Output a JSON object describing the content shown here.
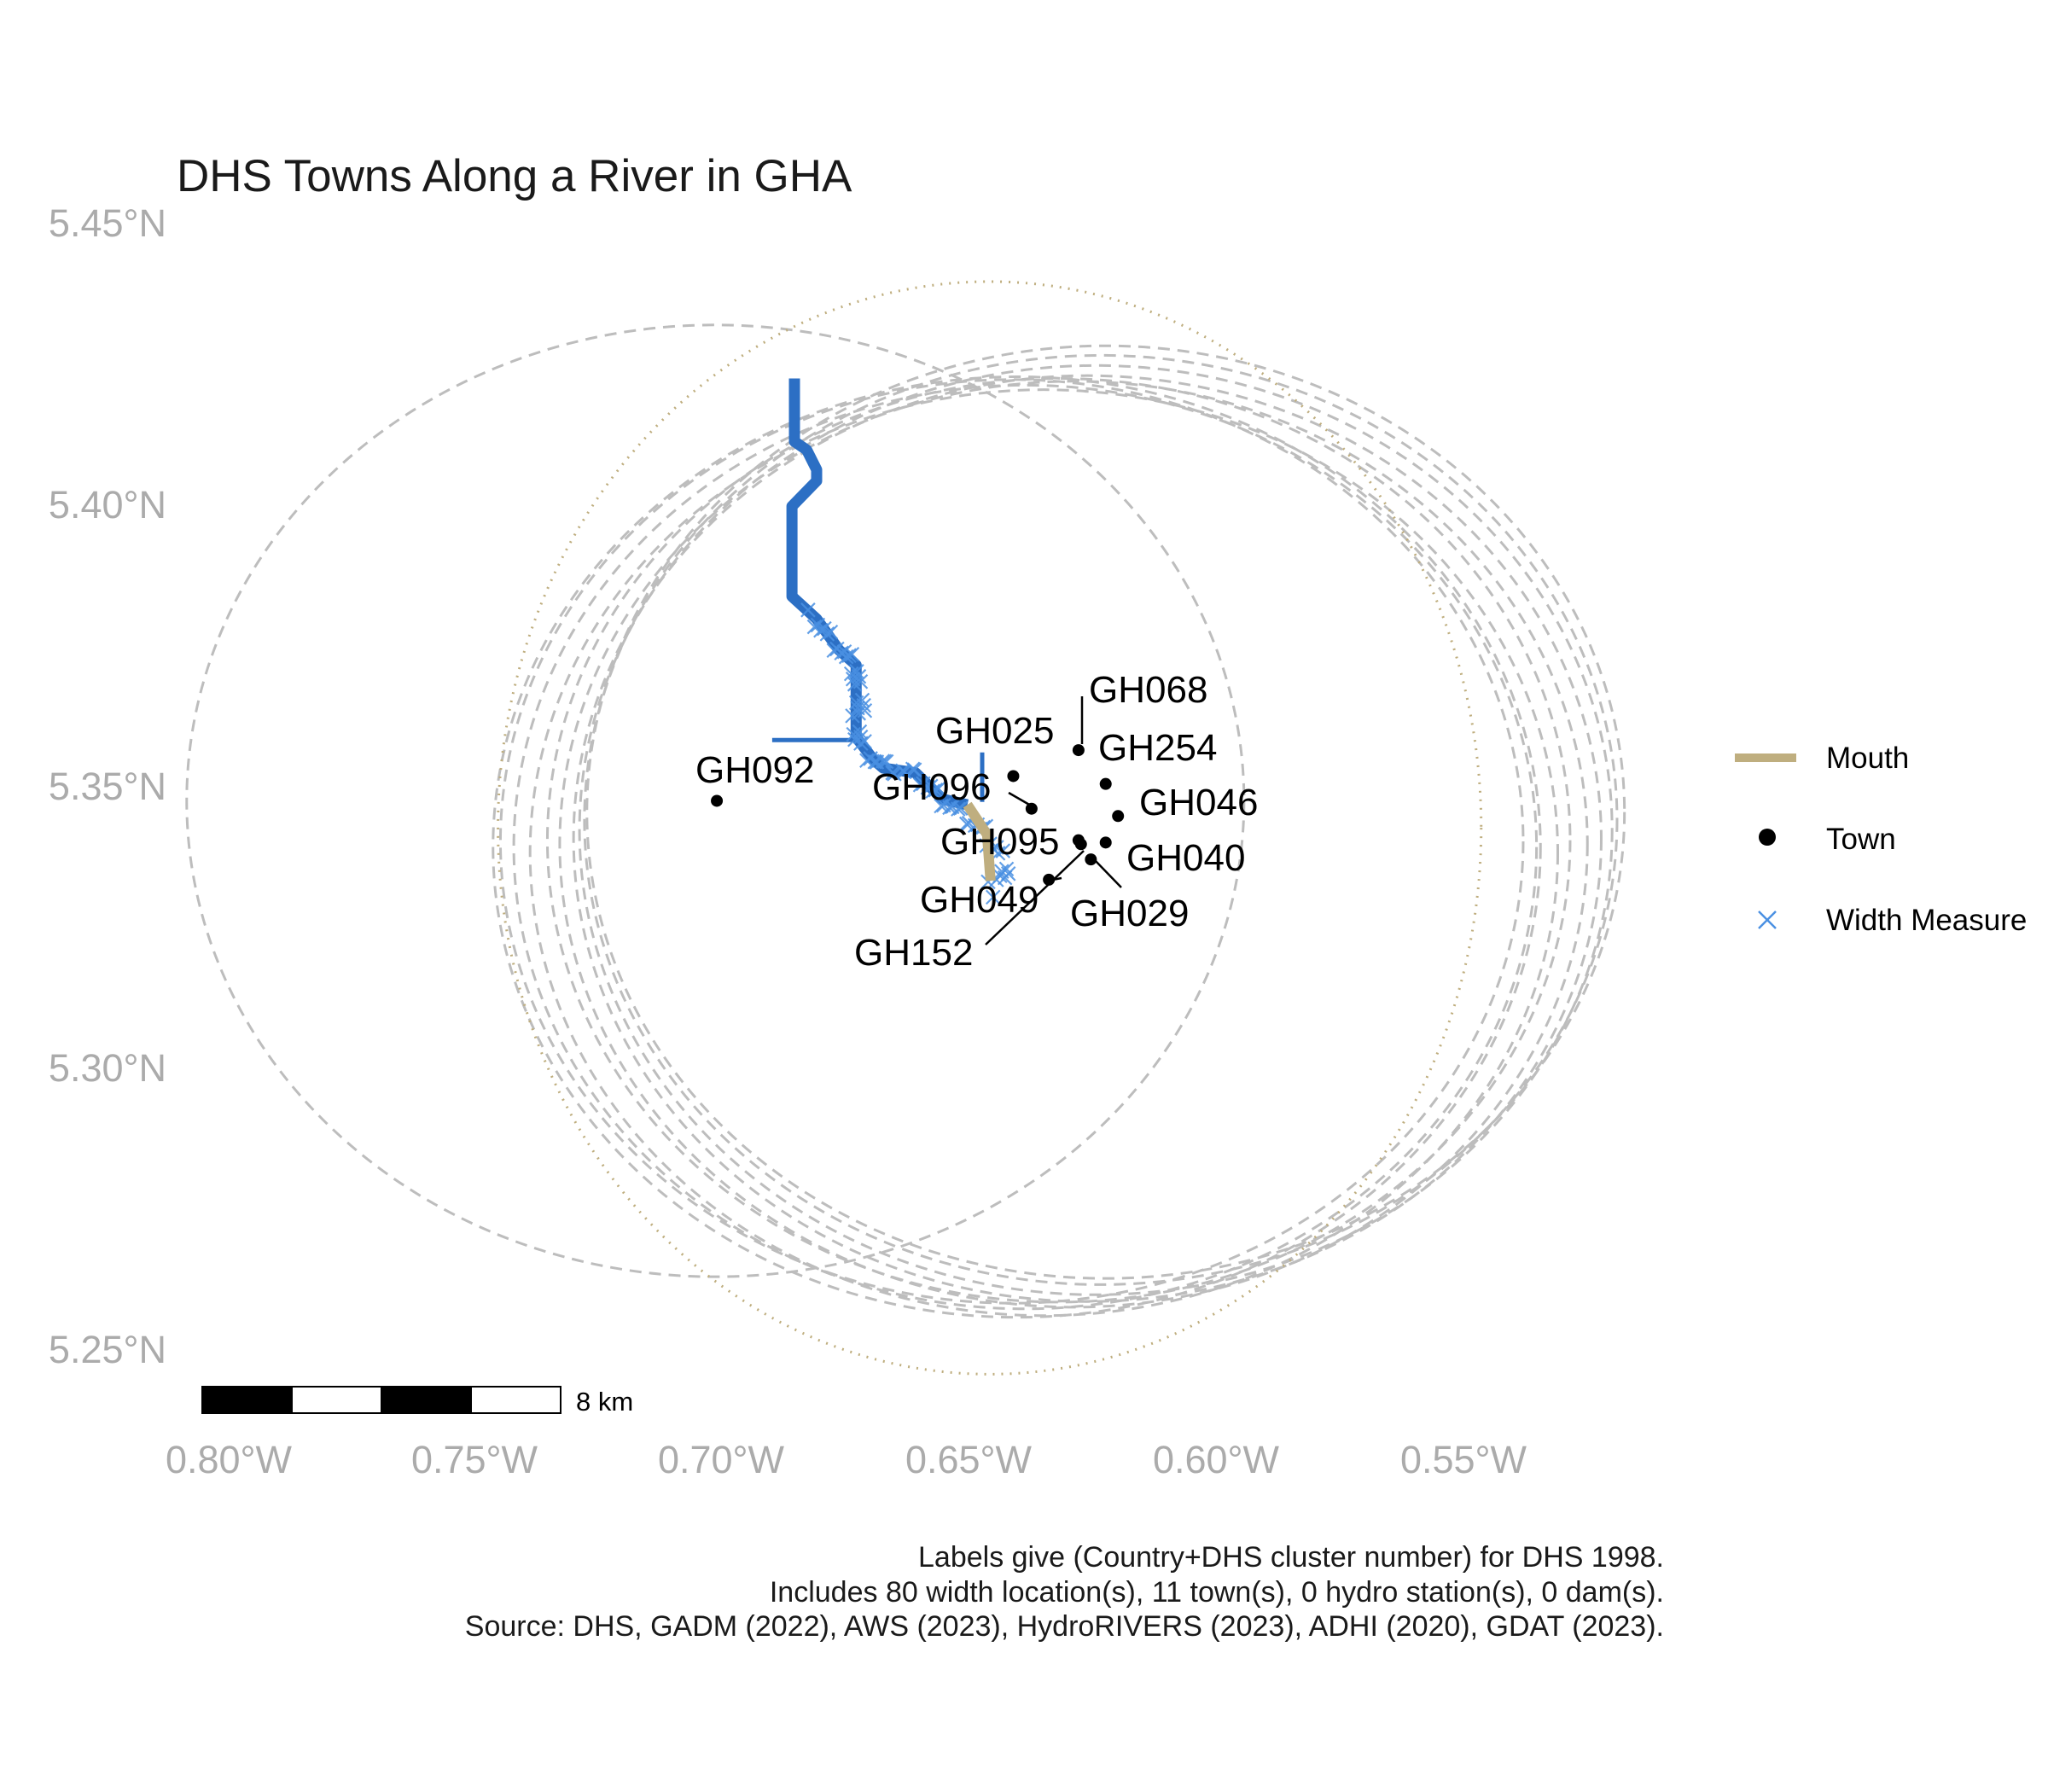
{
  "title": "DHS Towns Along a River in GHA",
  "caption": [
    "Labels give (Country+DHS cluster number) for DHS 1998.",
    "Includes 80 width location(s), 11 town(s), 0 hydro station(s), 0 dam(s).",
    "Source: DHS, GADM (2022), AWS (2023), HydroRIVERS (2023), ADHI (2020), GDAT (2023)."
  ],
  "colors": {
    "river": "#2c6fc4",
    "width_measure": "#4a90e2",
    "mouth": "#bfae7f",
    "buffer": "#bdbdbd",
    "town": "#000000",
    "axis_text": "#ababab"
  },
  "chart_data": {
    "type": "map",
    "title": "DHS Towns Along a River in GHA",
    "x_axis": {
      "ticks": [
        -0.8,
        -0.75,
        -0.7,
        -0.65,
        -0.6,
        -0.55
      ],
      "tick_labels": [
        "0.80°W",
        "0.75°W",
        "0.70°W",
        "0.65°W",
        "0.60°W",
        "0.55°W"
      ]
    },
    "y_axis": {
      "ticks": [
        5.45,
        5.4,
        5.35,
        5.3,
        5.25
      ],
      "tick_labels": [
        "5.45°N",
        "5.40°N",
        "5.35°N",
        "5.30°N",
        "5.25°N"
      ]
    },
    "towns": [
      {
        "id": "GH068",
        "lon": -0.628,
        "lat": 5.3562
      },
      {
        "id": "GH025",
        "lon": -0.6412,
        "lat": 5.3516
      },
      {
        "id": "GH254",
        "lon": -0.6225,
        "lat": 5.3502
      },
      {
        "id": "GH092",
        "lon": -0.7012,
        "lat": 5.3472
      },
      {
        "id": "GH096",
        "lon": -0.6375,
        "lat": 5.3458
      },
      {
        "id": "GH046",
        "lon": -0.62,
        "lat": 5.3445
      },
      {
        "id": "GH095",
        "lon": -0.628,
        "lat": 5.3402
      },
      {
        "id": "GH040",
        "lon": -0.6225,
        "lat": 5.3398
      },
      {
        "id": "GH029",
        "lon": -0.6255,
        "lat": 5.3368
      },
      {
        "id": "GH049",
        "lon": -0.634,
        "lat": 5.3332
      },
      {
        "id": "GH152",
        "lon": -0.6275,
        "lat": 5.3395
      }
    ],
    "river_main": [
      [
        -0.6855,
        5.4222
      ],
      [
        -0.6855,
        5.411
      ],
      [
        -0.683,
        5.4095
      ],
      [
        -0.681,
        5.406
      ],
      [
        -0.681,
        5.404
      ],
      [
        -0.686,
        5.3995
      ],
      [
        -0.686,
        5.3835
      ],
      [
        -0.681,
        5.3795
      ],
      [
        -0.6765,
        5.374
      ],
      [
        -0.673,
        5.3713
      ],
      [
        -0.673,
        5.3585
      ],
      [
        -0.6695,
        5.3545
      ],
      [
        -0.6675,
        5.353
      ],
      [
        -0.661,
        5.3522
      ],
      [
        -0.6555,
        5.3475
      ],
      [
        -0.6505,
        5.3465
      ]
    ],
    "river_tributaries": [
      [
        [
          -0.69,
          5.358
        ],
        [
          -0.673,
          5.358
        ]
      ],
      [
        [
          -0.6475,
          5.3558
        ],
        [
          -0.6475,
          5.347
        ]
      ]
    ],
    "mouth_line": [
      [
        -0.6505,
        5.3465
      ],
      [
        -0.6465,
        5.3412
      ],
      [
        -0.6458,
        5.333
      ]
    ],
    "width_measures_path": [
      [
        -0.6815,
        5.38
      ],
      [
        -0.6775,
        5.375
      ],
      [
        -0.673,
        5.371
      ],
      [
        -0.6725,
        5.365
      ],
      [
        -0.6725,
        5.358
      ],
      [
        -0.67,
        5.3545
      ],
      [
        -0.666,
        5.353
      ],
      [
        -0.661,
        5.352
      ],
      [
        -0.6565,
        5.348
      ],
      [
        -0.652,
        5.345
      ],
      [
        -0.6475,
        5.342
      ],
      [
        -0.644,
        5.338
      ],
      [
        -0.643,
        5.335
      ],
      [
        -0.6455,
        5.331
      ]
    ],
    "width_measure_count": 80,
    "buffers": [
      {
        "lon": -0.7015,
        "lat": 5.3472,
        "r_lon": 0.107,
        "r_lat": 0.0845
      },
      {
        "lon": -0.6415,
        "lat": 5.34,
        "r_lon": 0.1035,
        "r_lat": 0.082
      },
      {
        "lon": -0.6388,
        "lat": 5.339,
        "r_lon": 0.1035,
        "r_lat": 0.082
      },
      {
        "lon": -0.635,
        "lat": 5.338,
        "r_lon": 0.104,
        "r_lat": 0.0822
      },
      {
        "lon": -0.632,
        "lat": 5.3402,
        "r_lon": 0.1035,
        "r_lat": 0.082
      },
      {
        "lon": -0.629,
        "lat": 5.3395,
        "r_lon": 0.104,
        "r_lat": 0.0822
      },
      {
        "lon": -0.6262,
        "lat": 5.3405,
        "r_lon": 0.104,
        "r_lat": 0.0822
      },
      {
        "lon": -0.6245,
        "lat": 5.342,
        "r_lon": 0.1045,
        "r_lat": 0.0825
      },
      {
        "lon": -0.6235,
        "lat": 5.3438,
        "r_lon": 0.1045,
        "r_lat": 0.0825
      },
      {
        "lon": -0.6225,
        "lat": 5.3452,
        "r_lon": 0.105,
        "r_lat": 0.0828
      },
      {
        "lon": -0.6405,
        "lat": 5.339,
        "r_lon": 0.106,
        "r_lat": 0.0835
      }
    ],
    "mouth_buffer": {
      "lon": -0.646,
      "lat": 5.3424,
      "r_lon": 0.0995,
      "r_lat": 0.097
    },
    "scale_bar": {
      "label": "8 km",
      "segments": 4
    }
  },
  "legend": {
    "items": [
      {
        "label": "Mouth",
        "kind": "line",
        "color": "#bfae7f"
      },
      {
        "label": "Town",
        "kind": "point",
        "color": "#000000"
      },
      {
        "label": "Width Measure",
        "kind": "cross",
        "color": "#4a90e2"
      }
    ]
  }
}
